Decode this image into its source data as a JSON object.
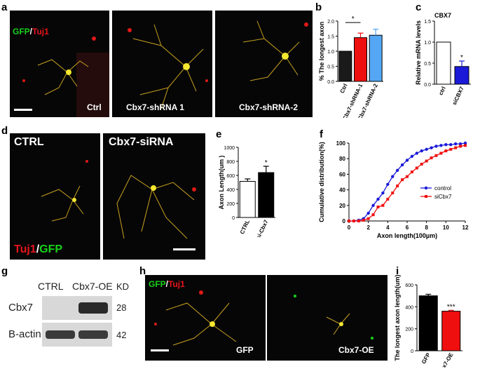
{
  "panels": {
    "a": {
      "label": "a",
      "stain": {
        "gfp": "GFP",
        "sep": "/",
        "tuj1": "Tuj1"
      },
      "images": [
        "Ctrl",
        "Cbx7-shRNA 1",
        "Cbx7-shRNA-2"
      ]
    },
    "b": {
      "label": "b"
    },
    "c": {
      "label": "c"
    },
    "d": {
      "label": "d",
      "images": [
        "CTRL",
        "Cbx7-siRNA"
      ],
      "stain": {
        "tuj1": "Tuj1",
        "sep": "/",
        "gfp": "GFP"
      }
    },
    "e": {
      "label": "e"
    },
    "f": {
      "label": "f"
    },
    "g": {
      "label": "g",
      "columns": [
        "CTRL",
        "Cbx7-OE"
      ],
      "kd_header": "KD",
      "rows": [
        {
          "protein": "Cbx7",
          "kd": "28"
        },
        {
          "protein": "B-actin",
          "kd": "42"
        }
      ]
    },
    "h": {
      "label": "h",
      "images": [
        "GFP",
        "Cbx7-OE"
      ],
      "stain": {
        "gfp": "GFP",
        "sep": "/",
        "tuj1": "Tuj1"
      }
    },
    "i": {
      "label": "i"
    }
  },
  "colors": {
    "gfp": "#19d21a",
    "tuj1": "#e8141c",
    "ctrl_blue": "#1a1ad8",
    "red": "#f00f0f",
    "light_blue": "#55a7f5"
  },
  "chart_data": [
    {
      "id": "b",
      "type": "bar",
      "ylabel": "% The longest axon",
      "categories": [
        "Ctrl",
        "Cbx7-shRNA-1",
        "Cbx7-shRNA-2"
      ],
      "values": [
        1.0,
        1.45,
        1.53
      ],
      "errors": [
        0,
        0.15,
        0.2
      ],
      "colors": [
        "#1a1a1a",
        "#f00f0f",
        "#55a7f5"
      ],
      "ylim": [
        0,
        2.0
      ],
      "yticks": [
        "0.0",
        "0.5",
        "1.0",
        "1.5",
        "2.0"
      ],
      "significance": "*"
    },
    {
      "id": "c",
      "type": "bar",
      "title": "CBX7",
      "ylabel": "Relative mRNA levels",
      "categories": [
        "ctrl",
        "siCBX7"
      ],
      "values": [
        1.0,
        0.42
      ],
      "errors": [
        0,
        0.13
      ],
      "colors": [
        "#ffffff",
        "#1a1ad8"
      ],
      "ylim": [
        0,
        1.5
      ],
      "yticks": [
        "0.0",
        "0.5",
        "1.0",
        "1.5"
      ],
      "significance": "*"
    },
    {
      "id": "e",
      "type": "bar",
      "ylabel": "Axon Length(um )",
      "categories": [
        "CTRL",
        "si-Cbx7"
      ],
      "values": [
        515,
        640
      ],
      "errors": [
        35,
        90
      ],
      "colors": [
        "#ffffff",
        "#000000"
      ],
      "ylim": [
        0,
        1000
      ],
      "yticks": [
        "0",
        "200",
        "400",
        "600",
        "800",
        "1000"
      ],
      "significance": "*"
    },
    {
      "id": "f",
      "type": "line",
      "xlabel": "Axon length(100µm)",
      "ylabel": "Cumulative distribution(%)",
      "xlim": [
        0,
        12
      ],
      "ylim": [
        0,
        100
      ],
      "xticks": [
        "0",
        "2",
        "4",
        "6",
        "8",
        "10",
        "12"
      ],
      "yticks": [
        "0",
        "20",
        "40",
        "60",
        "80",
        "100"
      ],
      "legend": "right",
      "series": [
        {
          "name": "control",
          "color": "#1a1ad8",
          "x": [
            0,
            0.5,
            1,
            1.5,
            2,
            2.5,
            3,
            3.5,
            4,
            4.5,
            5,
            5.5,
            6,
            6.5,
            7,
            7.5,
            8,
            8.5,
            9,
            9.5,
            10,
            10.5,
            11,
            11.5,
            12
          ],
          "y": [
            0,
            0,
            1,
            3,
            10,
            20,
            28,
            36,
            47,
            57,
            65,
            72,
            78,
            83,
            87,
            90,
            92,
            94,
            96,
            97,
            98,
            98,
            99,
            99,
            100
          ]
        },
        {
          "name": "siCbx7",
          "color": "#f00f0f",
          "x": [
            0,
            0.5,
            1,
            1.5,
            2,
            2.5,
            3,
            3.5,
            4,
            4.5,
            5,
            5.5,
            6,
            6.5,
            7,
            7.5,
            8,
            8.5,
            9,
            9.5,
            10,
            10.5,
            11,
            11.5,
            12
          ],
          "y": [
            0,
            0,
            0,
            1,
            3,
            8,
            18,
            20,
            28,
            36,
            45,
            53,
            57,
            63,
            68,
            73,
            77,
            81,
            84,
            87,
            90,
            92,
            94,
            96,
            97
          ]
        }
      ]
    },
    {
      "id": "i",
      "type": "bar",
      "ylabel": "The longest axon length(um)",
      "categories": [
        "GFP",
        "Cbx7-OE"
      ],
      "values": [
        500,
        360
      ],
      "errors": [
        14,
        8
      ],
      "colors": [
        "#000000",
        "#f00f0f"
      ],
      "ylim": [
        0,
        600
      ],
      "yticks": [
        "0",
        "200",
        "400",
        "600"
      ],
      "significance": "***"
    }
  ]
}
